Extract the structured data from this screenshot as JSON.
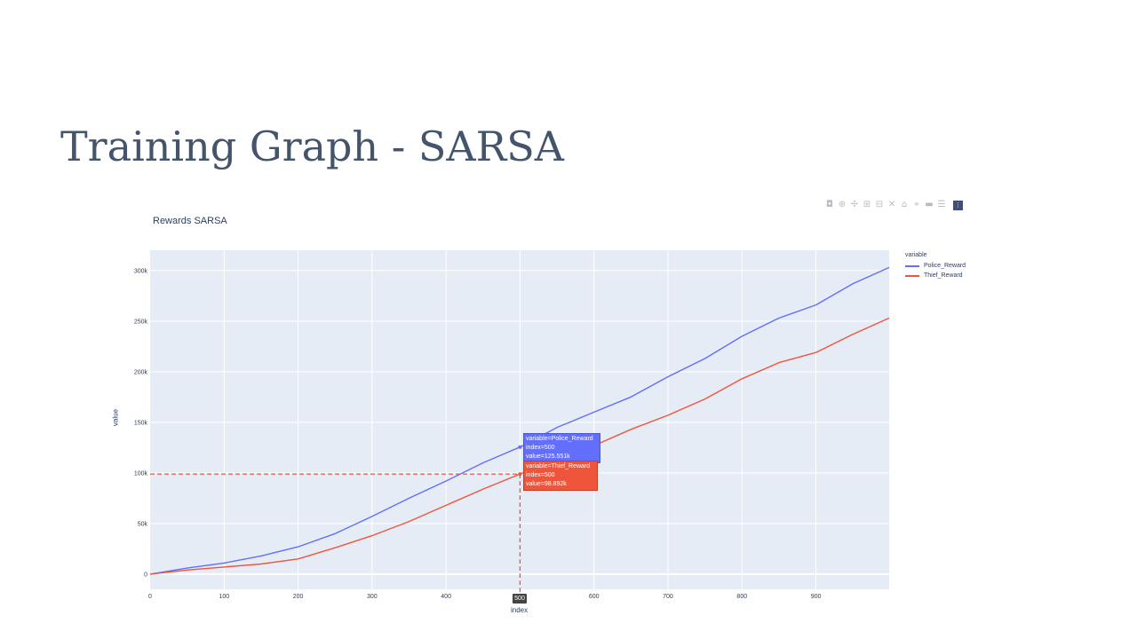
{
  "slide": {
    "title": "Training Graph - SARSA"
  },
  "modebar": {
    "buttons": [
      {
        "name": "camera-icon",
        "glyph": "◘"
      },
      {
        "name": "zoom-icon",
        "glyph": "⊕"
      },
      {
        "name": "pan-icon",
        "glyph": "✢"
      },
      {
        "name": "zoom-in-icon",
        "glyph": "⊞"
      },
      {
        "name": "zoom-out-icon",
        "glyph": "⊟"
      },
      {
        "name": "autoscale-icon",
        "glyph": "✕"
      },
      {
        "name": "reset-axes-icon",
        "glyph": "⌂"
      },
      {
        "name": "spike-lines-icon",
        "glyph": "⌖"
      },
      {
        "name": "hover-closest-icon",
        "glyph": "▬"
      },
      {
        "name": "hover-compare-icon",
        "glyph": "☰"
      }
    ],
    "logo": {
      "name": "plotly-logo-icon",
      "glyph": "⋮"
    }
  },
  "chart_data": {
    "type": "line",
    "title": "Rewards SARSA",
    "xlabel": "index",
    "ylabel": "value",
    "xlim": [
      0,
      999
    ],
    "ylim": [
      -15000,
      320000
    ],
    "x_ticks": [
      0,
      100,
      200,
      300,
      400,
      500,
      600,
      700,
      800,
      900
    ],
    "y_ticks": [
      0,
      50000,
      100000,
      150000,
      200000,
      250000,
      300000
    ],
    "y_tick_labels": [
      "0",
      "50k",
      "100k",
      "150k",
      "200k",
      "250k",
      "300k"
    ],
    "grid": true,
    "legend_title": "variable",
    "legend_position": "right",
    "x": [
      0,
      50,
      100,
      150,
      200,
      250,
      300,
      350,
      400,
      450,
      500,
      550,
      600,
      650,
      700,
      750,
      800,
      850,
      900,
      950,
      999
    ],
    "series": [
      {
        "name": "Police_Reward",
        "color": "#636efa",
        "values": [
          0,
          6000,
          11000,
          18000,
          27000,
          40000,
          57000,
          75000,
          92000,
          110000,
          125551,
          145000,
          160000,
          175000,
          195000,
          213000,
          235000,
          253000,
          266000,
          287000,
          303000
        ]
      },
      {
        "name": "Thief_Reward",
        "color": "#ef553b",
        "values": [
          0,
          4000,
          7000,
          10000,
          15000,
          26000,
          38000,
          52000,
          68000,
          84000,
          98892,
          113000,
          127000,
          143000,
          157000,
          173000,
          193000,
          209000,
          219000,
          237000,
          253000
        ]
      }
    ],
    "hover": {
      "x": 500,
      "x_label": "500",
      "police": {
        "variable": "variable=Police_Reward",
        "index": "index=500",
        "value": "value=125.551k"
      },
      "thief": {
        "variable": "variable=Thief_Reward",
        "index": "index=500",
        "value": "value=98.892k"
      },
      "thief_value": 98892
    }
  }
}
